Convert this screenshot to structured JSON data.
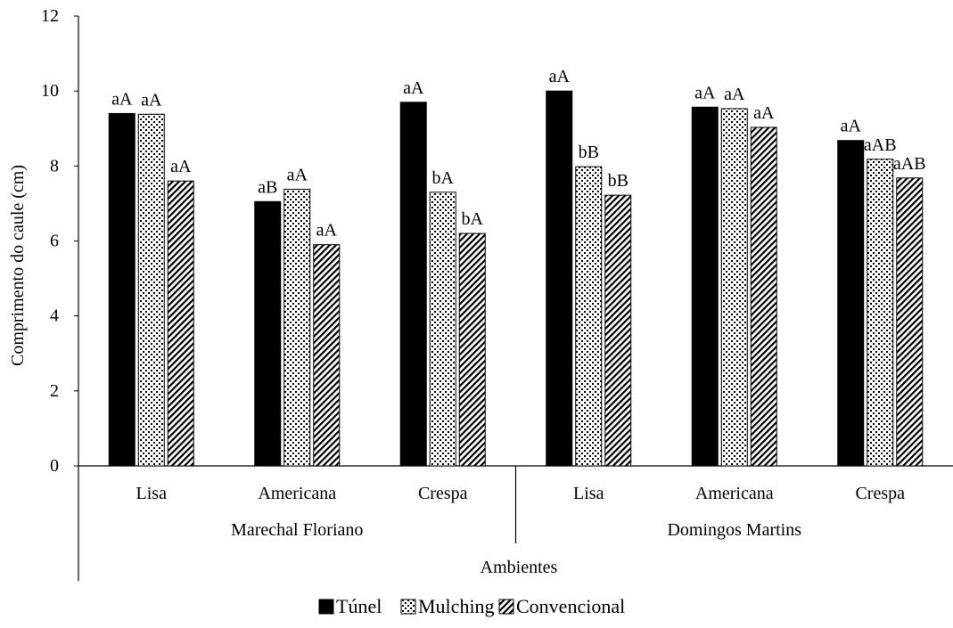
{
  "chart_data": {
    "type": "bar",
    "title": "",
    "ylabel": "Comprimento do caule (cm)",
    "xlabel": "Ambientes",
    "ylim": [
      0,
      12
    ],
    "yticks": [
      "0",
      "2",
      "4",
      "6",
      "8",
      "10",
      "12"
    ],
    "grid": false,
    "legend_position": "bottom",
    "groups": [
      "Marechal Floriano",
      "Domingos Martins"
    ],
    "categories": [
      "Lisa",
      "Americana",
      "Crespa",
      "Lisa",
      "Americana",
      "Crespa"
    ],
    "series": [
      {
        "name": "Túnel",
        "pattern": "solid",
        "color": "#000000",
        "values": [
          9.4,
          7.05,
          9.7,
          10.0,
          9.57,
          8.68
        ],
        "labels": [
          "aA",
          "aB",
          "aA",
          "aA",
          "aA",
          "aA"
        ]
      },
      {
        "name": "Mulching",
        "pattern": "dots",
        "color": "#000000",
        "values": [
          9.38,
          7.38,
          7.3,
          7.98,
          9.53,
          8.18
        ],
        "labels": [
          "aA",
          "aA",
          "bA",
          "bB",
          "aA",
          "aAB"
        ]
      },
      {
        "name": "Convencional",
        "pattern": "diagonal",
        "color": "#000000",
        "values": [
          7.6,
          5.9,
          6.2,
          7.22,
          9.03,
          7.68
        ],
        "labels": [
          "aA",
          "aA",
          "bA",
          "bB",
          "aA",
          "aAB"
        ]
      }
    ]
  }
}
